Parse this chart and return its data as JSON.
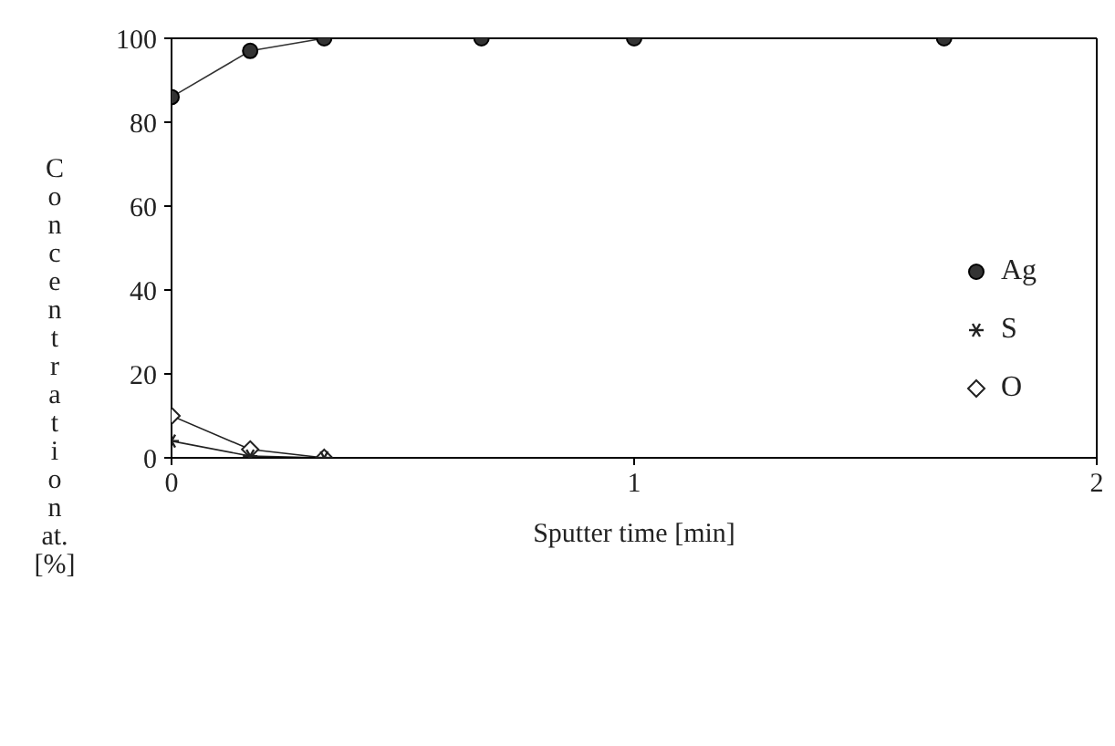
{
  "chart_data": {
    "type": "line",
    "xlabel": "Sputter time [min]",
    "ylabel": "Concentration at. [%]",
    "xlim": [
      0,
      2
    ],
    "xticks": [
      0,
      1,
      2
    ],
    "ylim": [
      0,
      100
    ],
    "yticks": [
      0,
      20,
      40,
      60,
      80,
      100
    ],
    "legend": "right",
    "line_style": "solid",
    "series": [
      {
        "name": "Ag",
        "color": "#333333",
        "marker": "circle",
        "x": [
          0,
          0.17,
          0.33,
          0.67,
          1,
          1.67
        ],
        "values": [
          86,
          97,
          100,
          100,
          100,
          100
        ]
      },
      {
        "name": "S",
        "color": "#222222",
        "marker": "cross",
        "x": [
          0,
          0.17,
          0.33
        ],
        "values": [
          4,
          0.4,
          0
        ]
      },
      {
        "name": "O",
        "color": "#222222",
        "marker": "diamond",
        "x": [
          0,
          0.17,
          0.33
        ],
        "values": [
          10,
          2,
          0
        ]
      }
    ]
  }
}
